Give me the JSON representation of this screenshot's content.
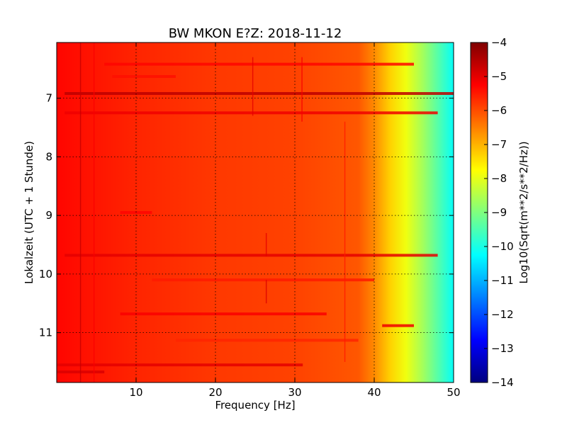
{
  "chart_data": {
    "type": "heatmap",
    "title": "BW MKON E?Z: 2018-11-12",
    "xlabel": "Frequency [Hz]",
    "ylabel": "Lokalzeit (UTC + 1 Stunde)",
    "colorbar_label": "Log10(Sqrt(m**2/s**2/Hz))",
    "colormap": "jet",
    "xlim": [
      0,
      50
    ],
    "ylim": [
      11.85,
      6.05
    ],
    "y_inverted": true,
    "clim": [
      -14,
      -4
    ],
    "grid": true,
    "x_ticks": [
      10,
      20,
      30,
      40,
      50
    ],
    "x_tick_labels": [
      "10",
      "20",
      "30",
      "40",
      "50"
    ],
    "y_ticks": [
      7,
      8,
      9,
      10,
      11
    ],
    "y_tick_labels": [
      "7",
      "8",
      "9",
      "10",
      "11"
    ],
    "colorbar_ticks": [
      -4,
      -5,
      -6,
      -7,
      -8,
      -9,
      -10,
      -11,
      -12,
      -13,
      -14
    ],
    "colorbar_tick_labels": [
      "−4",
      "−5",
      "−6",
      "−7",
      "−8",
      "−9",
      "−10",
      "−11",
      "−12",
      "−13",
      "−14"
    ],
    "frequency_profile": [
      {
        "x": 0,
        "value": -5.3
      },
      {
        "x": 3,
        "value": -5.4
      },
      {
        "x": 10,
        "value": -5.6
      },
      {
        "x": 20,
        "value": -5.8
      },
      {
        "x": 30,
        "value": -5.9
      },
      {
        "x": 38,
        "value": -6.1
      },
      {
        "x": 40,
        "value": -6.6
      },
      {
        "x": 42,
        "value": -7.3
      },
      {
        "x": 44,
        "value": -7.9
      },
      {
        "x": 46,
        "value": -8.6
      },
      {
        "x": 48,
        "value": -9.4
      },
      {
        "x": 50,
        "value": -10.2
      }
    ],
    "horizontal_bands": [
      {
        "time": 6.42,
        "x_from": 6,
        "x_to": 45,
        "value": -5.3
      },
      {
        "time": 6.63,
        "x_from": 7,
        "x_to": 15,
        "value": -5.4
      },
      {
        "time": 6.92,
        "x_from": 1,
        "x_to": 50,
        "value": -4.6
      },
      {
        "time": 7.25,
        "x_from": 1,
        "x_to": 48,
        "value": -5.1
      },
      {
        "time": 8.95,
        "x_from": 8,
        "x_to": 12,
        "value": -5.3
      },
      {
        "time": 9.68,
        "x_from": 1,
        "x_to": 48,
        "value": -5.0
      },
      {
        "time": 10.1,
        "x_from": 12,
        "x_to": 40,
        "value": -5.5
      },
      {
        "time": 10.68,
        "x_from": 8,
        "x_to": 34,
        "value": -5.2
      },
      {
        "time": 10.88,
        "x_from": 41,
        "x_to": 45,
        "value": -5.1
      },
      {
        "time": 11.13,
        "x_from": 15,
        "x_to": 38,
        "value": -5.6
      },
      {
        "time": 11.55,
        "x_from": 0,
        "x_to": 31,
        "value": -5.0
      },
      {
        "time": 11.67,
        "x_from": 0,
        "x_to": 6,
        "value": -4.9
      }
    ],
    "vertical_lines": [
      {
        "x": 3.0,
        "t_from": 6.05,
        "t_to": 11.85,
        "value": -4.7
      },
      {
        "x": 4.7,
        "t_from": 6.05,
        "t_to": 11.85,
        "value": -5.2
      },
      {
        "x": 24.7,
        "t_from": 6.3,
        "t_to": 7.3,
        "value": -5.0
      },
      {
        "x": 26.4,
        "t_from": 9.3,
        "t_to": 9.7,
        "value": -5.0
      },
      {
        "x": 26.4,
        "t_from": 10.1,
        "t_to": 10.5,
        "value": -4.9
      },
      {
        "x": 30.9,
        "t_from": 6.3,
        "t_to": 7.4,
        "value": -5.2
      },
      {
        "x": 36.3,
        "t_from": 7.4,
        "t_to": 11.5,
        "value": -5.5
      }
    ]
  }
}
